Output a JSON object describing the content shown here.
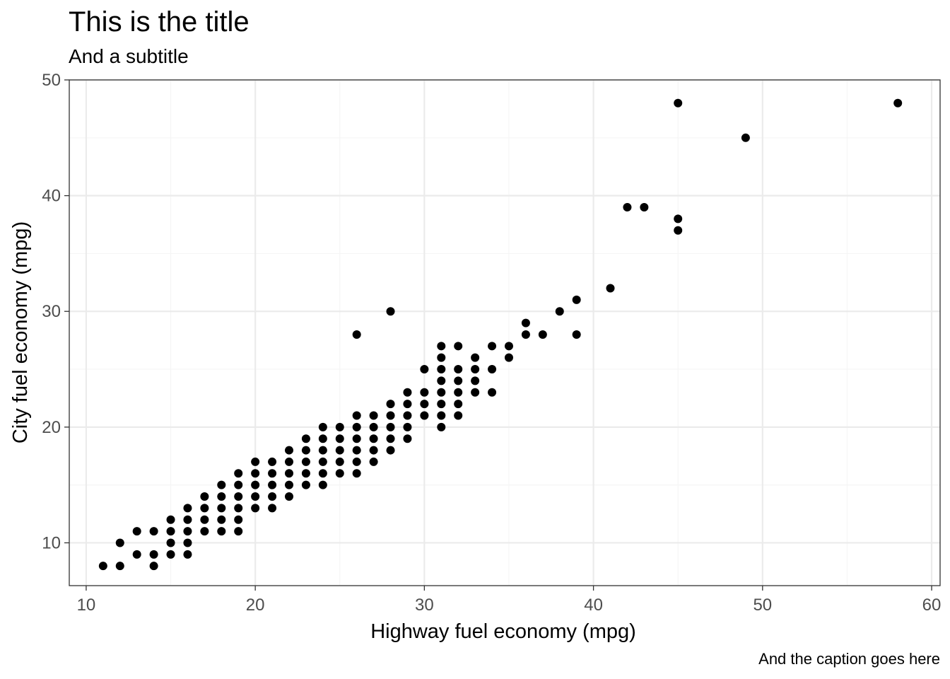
{
  "chart_data": {
    "type": "scatter",
    "title": "This is the title",
    "subtitle": "And a subtitle",
    "caption": "And the caption goes here",
    "xlabel": "Highway fuel economy (mpg)",
    "ylabel": "City fuel economy (mpg)",
    "xlim": [
      9,
      60.5
    ],
    "ylim": [
      6.3,
      50
    ],
    "xticks": [
      10,
      20,
      30,
      40,
      50,
      60
    ],
    "yticks": [
      10,
      20,
      30,
      40,
      50
    ],
    "xtick_labels": [
      "10",
      "20",
      "30",
      "40",
      "50",
      "60"
    ],
    "ytick_labels": [
      "10",
      "20",
      "30",
      "40",
      "50"
    ],
    "grid": true,
    "theme": "bw",
    "colors": {
      "point": "#000000",
      "grid_major": "#ebebeb",
      "grid_minor": "#f5f5f5",
      "panel_border": "#333333",
      "axis_text": "#4d4d4d"
    },
    "series": [
      {
        "points": [
          [
            11,
            8
          ],
          [
            12,
            8
          ],
          [
            12,
            10
          ],
          [
            13,
            9
          ],
          [
            13,
            11
          ],
          [
            14,
            8
          ],
          [
            14,
            9
          ],
          [
            14,
            11
          ],
          [
            15,
            9
          ],
          [
            15,
            10
          ],
          [
            15,
            11
          ],
          [
            15,
            12
          ],
          [
            16,
            9
          ],
          [
            16,
            10
          ],
          [
            16,
            11
          ],
          [
            16,
            12
          ],
          [
            16,
            13
          ],
          [
            17,
            11
          ],
          [
            17,
            12
          ],
          [
            17,
            13
          ],
          [
            17,
            14
          ],
          [
            18,
            11
          ],
          [
            18,
            12
          ],
          [
            18,
            13
          ],
          [
            18,
            14
          ],
          [
            18,
            15
          ],
          [
            19,
            11
          ],
          [
            19,
            12
          ],
          [
            19,
            13
          ],
          [
            19,
            14
          ],
          [
            19,
            15
          ],
          [
            19,
            16
          ],
          [
            20,
            13
          ],
          [
            20,
            14
          ],
          [
            20,
            15
          ],
          [
            20,
            16
          ],
          [
            20,
            17
          ],
          [
            21,
            13
          ],
          [
            21,
            14
          ],
          [
            21,
            15
          ],
          [
            21,
            16
          ],
          [
            21,
            17
          ],
          [
            22,
            14
          ],
          [
            22,
            15
          ],
          [
            22,
            16
          ],
          [
            22,
            17
          ],
          [
            22,
            18
          ],
          [
            23,
            15
          ],
          [
            23,
            16
          ],
          [
            23,
            17
          ],
          [
            23,
            18
          ],
          [
            23,
            19
          ],
          [
            24,
            15
          ],
          [
            24,
            16
          ],
          [
            24,
            17
          ],
          [
            24,
            18
          ],
          [
            24,
            19
          ],
          [
            24,
            20
          ],
          [
            25,
            16
          ],
          [
            25,
            17
          ],
          [
            25,
            18
          ],
          [
            25,
            19
          ],
          [
            25,
            20
          ],
          [
            26,
            16
          ],
          [
            26,
            17
          ],
          [
            26,
            18
          ],
          [
            26,
            19
          ],
          [
            26,
            20
          ],
          [
            26,
            21
          ],
          [
            26,
            28
          ],
          [
            27,
            17
          ],
          [
            27,
            18
          ],
          [
            27,
            19
          ],
          [
            27,
            20
          ],
          [
            27,
            21
          ],
          [
            28,
            18
          ],
          [
            28,
            19
          ],
          [
            28,
            20
          ],
          [
            28,
            21
          ],
          [
            28,
            22
          ],
          [
            28,
            30
          ],
          [
            29,
            19
          ],
          [
            29,
            20
          ],
          [
            29,
            21
          ],
          [
            29,
            22
          ],
          [
            29,
            23
          ],
          [
            30,
            21
          ],
          [
            30,
            22
          ],
          [
            30,
            23
          ],
          [
            30,
            25
          ],
          [
            31,
            20
          ],
          [
            31,
            21
          ],
          [
            31,
            22
          ],
          [
            31,
            23
          ],
          [
            31,
            24
          ],
          [
            31,
            25
          ],
          [
            31,
            26
          ],
          [
            31,
            27
          ],
          [
            32,
            21
          ],
          [
            32,
            22
          ],
          [
            32,
            23
          ],
          [
            32,
            24
          ],
          [
            32,
            25
          ],
          [
            32,
            27
          ],
          [
            33,
            23
          ],
          [
            33,
            24
          ],
          [
            33,
            25
          ],
          [
            33,
            26
          ],
          [
            34,
            23
          ],
          [
            34,
            25
          ],
          [
            34,
            27
          ],
          [
            35,
            26
          ],
          [
            35,
            27
          ],
          [
            36,
            28
          ],
          [
            36,
            29
          ],
          [
            37,
            28
          ],
          [
            38,
            30
          ],
          [
            39,
            28
          ],
          [
            39,
            31
          ],
          [
            41,
            32
          ],
          [
            42,
            39
          ],
          [
            43,
            39
          ],
          [
            45,
            37
          ],
          [
            45,
            38
          ],
          [
            45,
            48
          ],
          [
            49,
            45
          ],
          [
            58,
            48
          ]
        ]
      }
    ]
  }
}
